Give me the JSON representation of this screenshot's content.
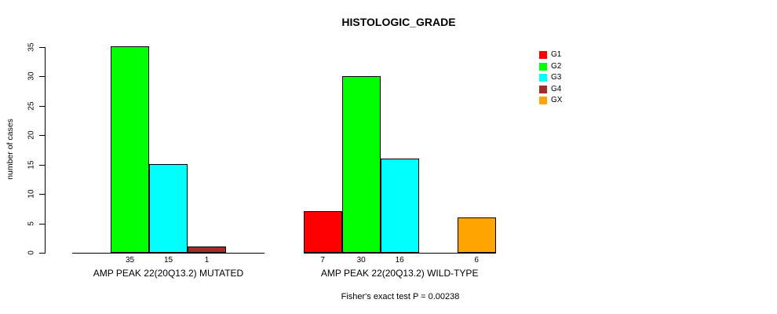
{
  "chart_data": {
    "type": "bar",
    "title": "HISTOLOGIC_GRADE",
    "ylabel": "number of cases",
    "xlabel": "",
    "ylim": [
      0,
      35
    ],
    "yticks": [
      0,
      5,
      10,
      15,
      20,
      25,
      30,
      35
    ],
    "grid": false,
    "legend_position": "right",
    "categories": [
      "G1",
      "G2",
      "G3",
      "G4",
      "GX"
    ],
    "category_colors": [
      "#ff0000",
      "#00ff00",
      "#00ffff",
      "#a52a2a",
      "#ffa500"
    ],
    "groups": [
      {
        "label": "AMP PEAK 22(20Q13.2) MUTATED",
        "values": [
          0,
          35,
          15,
          1,
          0
        ]
      },
      {
        "label": "AMP PEAK 22(20Q13.2) WILD-TYPE",
        "values": [
          7,
          30,
          16,
          0,
          6
        ]
      }
    ],
    "bar_value_labels": [
      [
        "",
        "35",
        "15",
        "1",
        ""
      ],
      [
        "7",
        "30",
        "16",
        "",
        "6"
      ]
    ],
    "annotation": "Fisher's exact test P = 0.00238",
    "axis_color": "#000000",
    "text_color": "#000000",
    "background_color": "#ffffff"
  }
}
